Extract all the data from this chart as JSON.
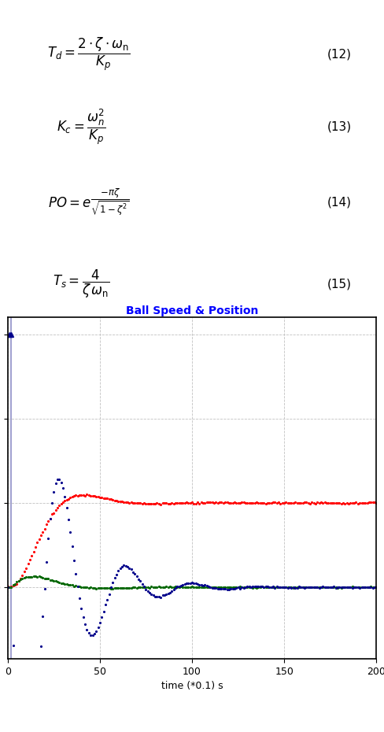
{
  "title": "Ball Speed & Position",
  "title_color": "blue",
  "xlabel": "time (*0.1) s",
  "xlim": [
    0,
    200
  ],
  "ylim": [
    -0.85,
    3.2
  ],
  "yticks": [
    0,
    1,
    2,
    3
  ],
  "xticks": [
    0,
    50,
    100,
    150,
    200
  ],
  "grid_color": "#bbbbbb",
  "bg_color": "#ffffff",
  "position_color": "#ff0000",
  "speed_color": "#006600",
  "actuator_color": "#00008b",
  "vertical_line_color": "#9999cc",
  "vertical_line_x": 2,
  "fig_width": 4.88,
  "fig_height": 9.3,
  "eq_ratio": 0.47,
  "chart_ratio": 0.53
}
